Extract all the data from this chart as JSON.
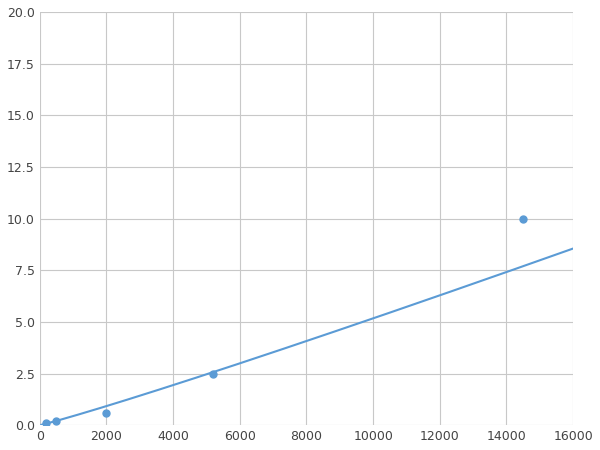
{
  "x": [
    200,
    500,
    2000,
    5200,
    14500
  ],
  "y": [
    0.1,
    0.2,
    0.6,
    2.5,
    10.0
  ],
  "line_color": "#5b9bd5",
  "marker_color": "#5b9bd5",
  "marker_size": 5,
  "xlim": [
    0,
    16000
  ],
  "ylim": [
    0,
    20.0
  ],
  "xticks": [
    0,
    2000,
    4000,
    6000,
    8000,
    10000,
    12000,
    14000,
    16000
  ],
  "yticks": [
    0.0,
    2.5,
    5.0,
    7.5,
    10.0,
    12.5,
    15.0,
    17.5,
    20.0
  ],
  "grid_color": "#c8c8c8",
  "background_color": "#ffffff",
  "figure_facecolor": "#ffffff"
}
